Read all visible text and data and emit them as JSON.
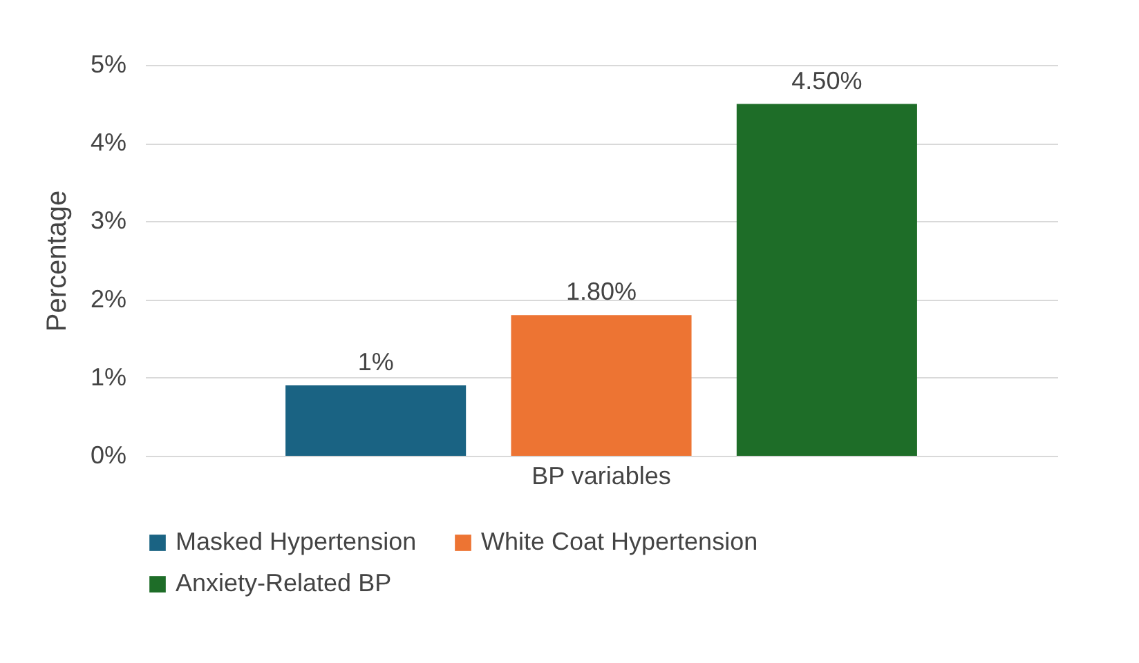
{
  "chart_data": {
    "type": "bar",
    "ylabel": "Percentage",
    "categories": [
      "BP variables"
    ],
    "series": [
      {
        "name": "Masked Hypertension",
        "color": "#1a6383",
        "values": [
          0.9
        ],
        "value_labels": [
          "1%"
        ]
      },
      {
        "name": "White Coat Hypertension",
        "color": "#ed7433",
        "values": [
          1.8
        ],
        "value_labels": [
          "1.80%"
        ]
      },
      {
        "name": "Anxiety-Related BP",
        "color": "#1e6d28",
        "values": [
          4.5
        ],
        "value_labels": [
          "4.50%"
        ]
      }
    ],
    "ylim": [
      0,
      5
    ],
    "yticks": [
      {
        "value": 0,
        "label": "0%"
      },
      {
        "value": 1,
        "label": "1%"
      },
      {
        "value": 2,
        "label": "2%"
      },
      {
        "value": 3,
        "label": "3%"
      },
      {
        "value": 4,
        "label": "4%"
      },
      {
        "value": 5,
        "label": "5%"
      }
    ],
    "grid": "y",
    "legend": "bottom"
  }
}
